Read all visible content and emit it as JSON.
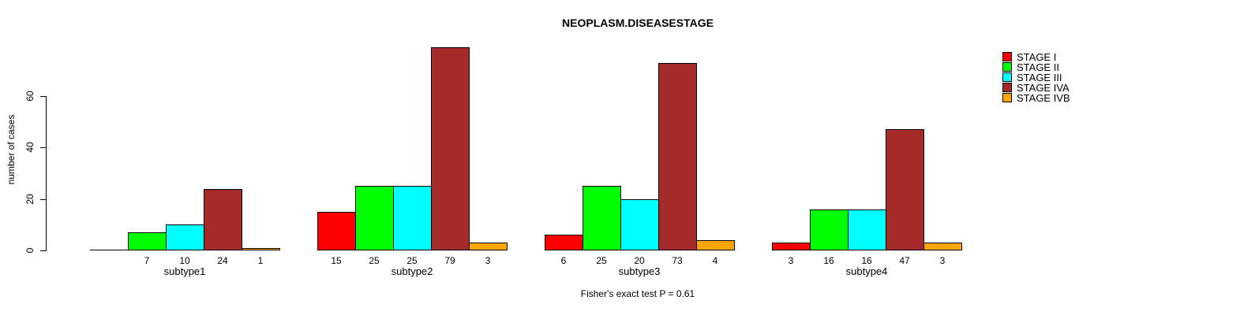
{
  "title": "NEOPLASM.DISEASESTAGE",
  "caption": "Fisher's exact test P = 0.61",
  "chart_data": {
    "type": "bar",
    "title": "NEOPLASM.DISEASESTAGE",
    "xlabel": "",
    "ylabel": "number of cases",
    "categories": [
      "subtype1",
      "subtype2",
      "subtype3",
      "subtype4"
    ],
    "series": [
      {
        "name": "STAGE I",
        "color": "#FF0000",
        "values": [
          0,
          15,
          6,
          3
        ]
      },
      {
        "name": "STAGE II",
        "color": "#00FF00",
        "values": [
          7,
          25,
          25,
          16
        ]
      },
      {
        "name": "STAGE III",
        "color": "#00FFFF",
        "values": [
          10,
          25,
          20,
          16
        ]
      },
      {
        "name": "STAGE IVA",
        "color": "#A52A2A",
        "values": [
          24,
          79,
          73,
          47
        ]
      },
      {
        "name": "STAGE IVB",
        "color": "#FFA500",
        "values": [
          1,
          3,
          4,
          3
        ]
      }
    ],
    "bar_value_labels": true,
    "zero_value_labels_hidden": true,
    "y_ticks": [
      0,
      20,
      40,
      60
    ],
    "ylim": [
      0,
      80
    ],
    "grid": false,
    "legend_position": "top-right",
    "annotation": "Fisher's exact test P = 0.61"
  }
}
